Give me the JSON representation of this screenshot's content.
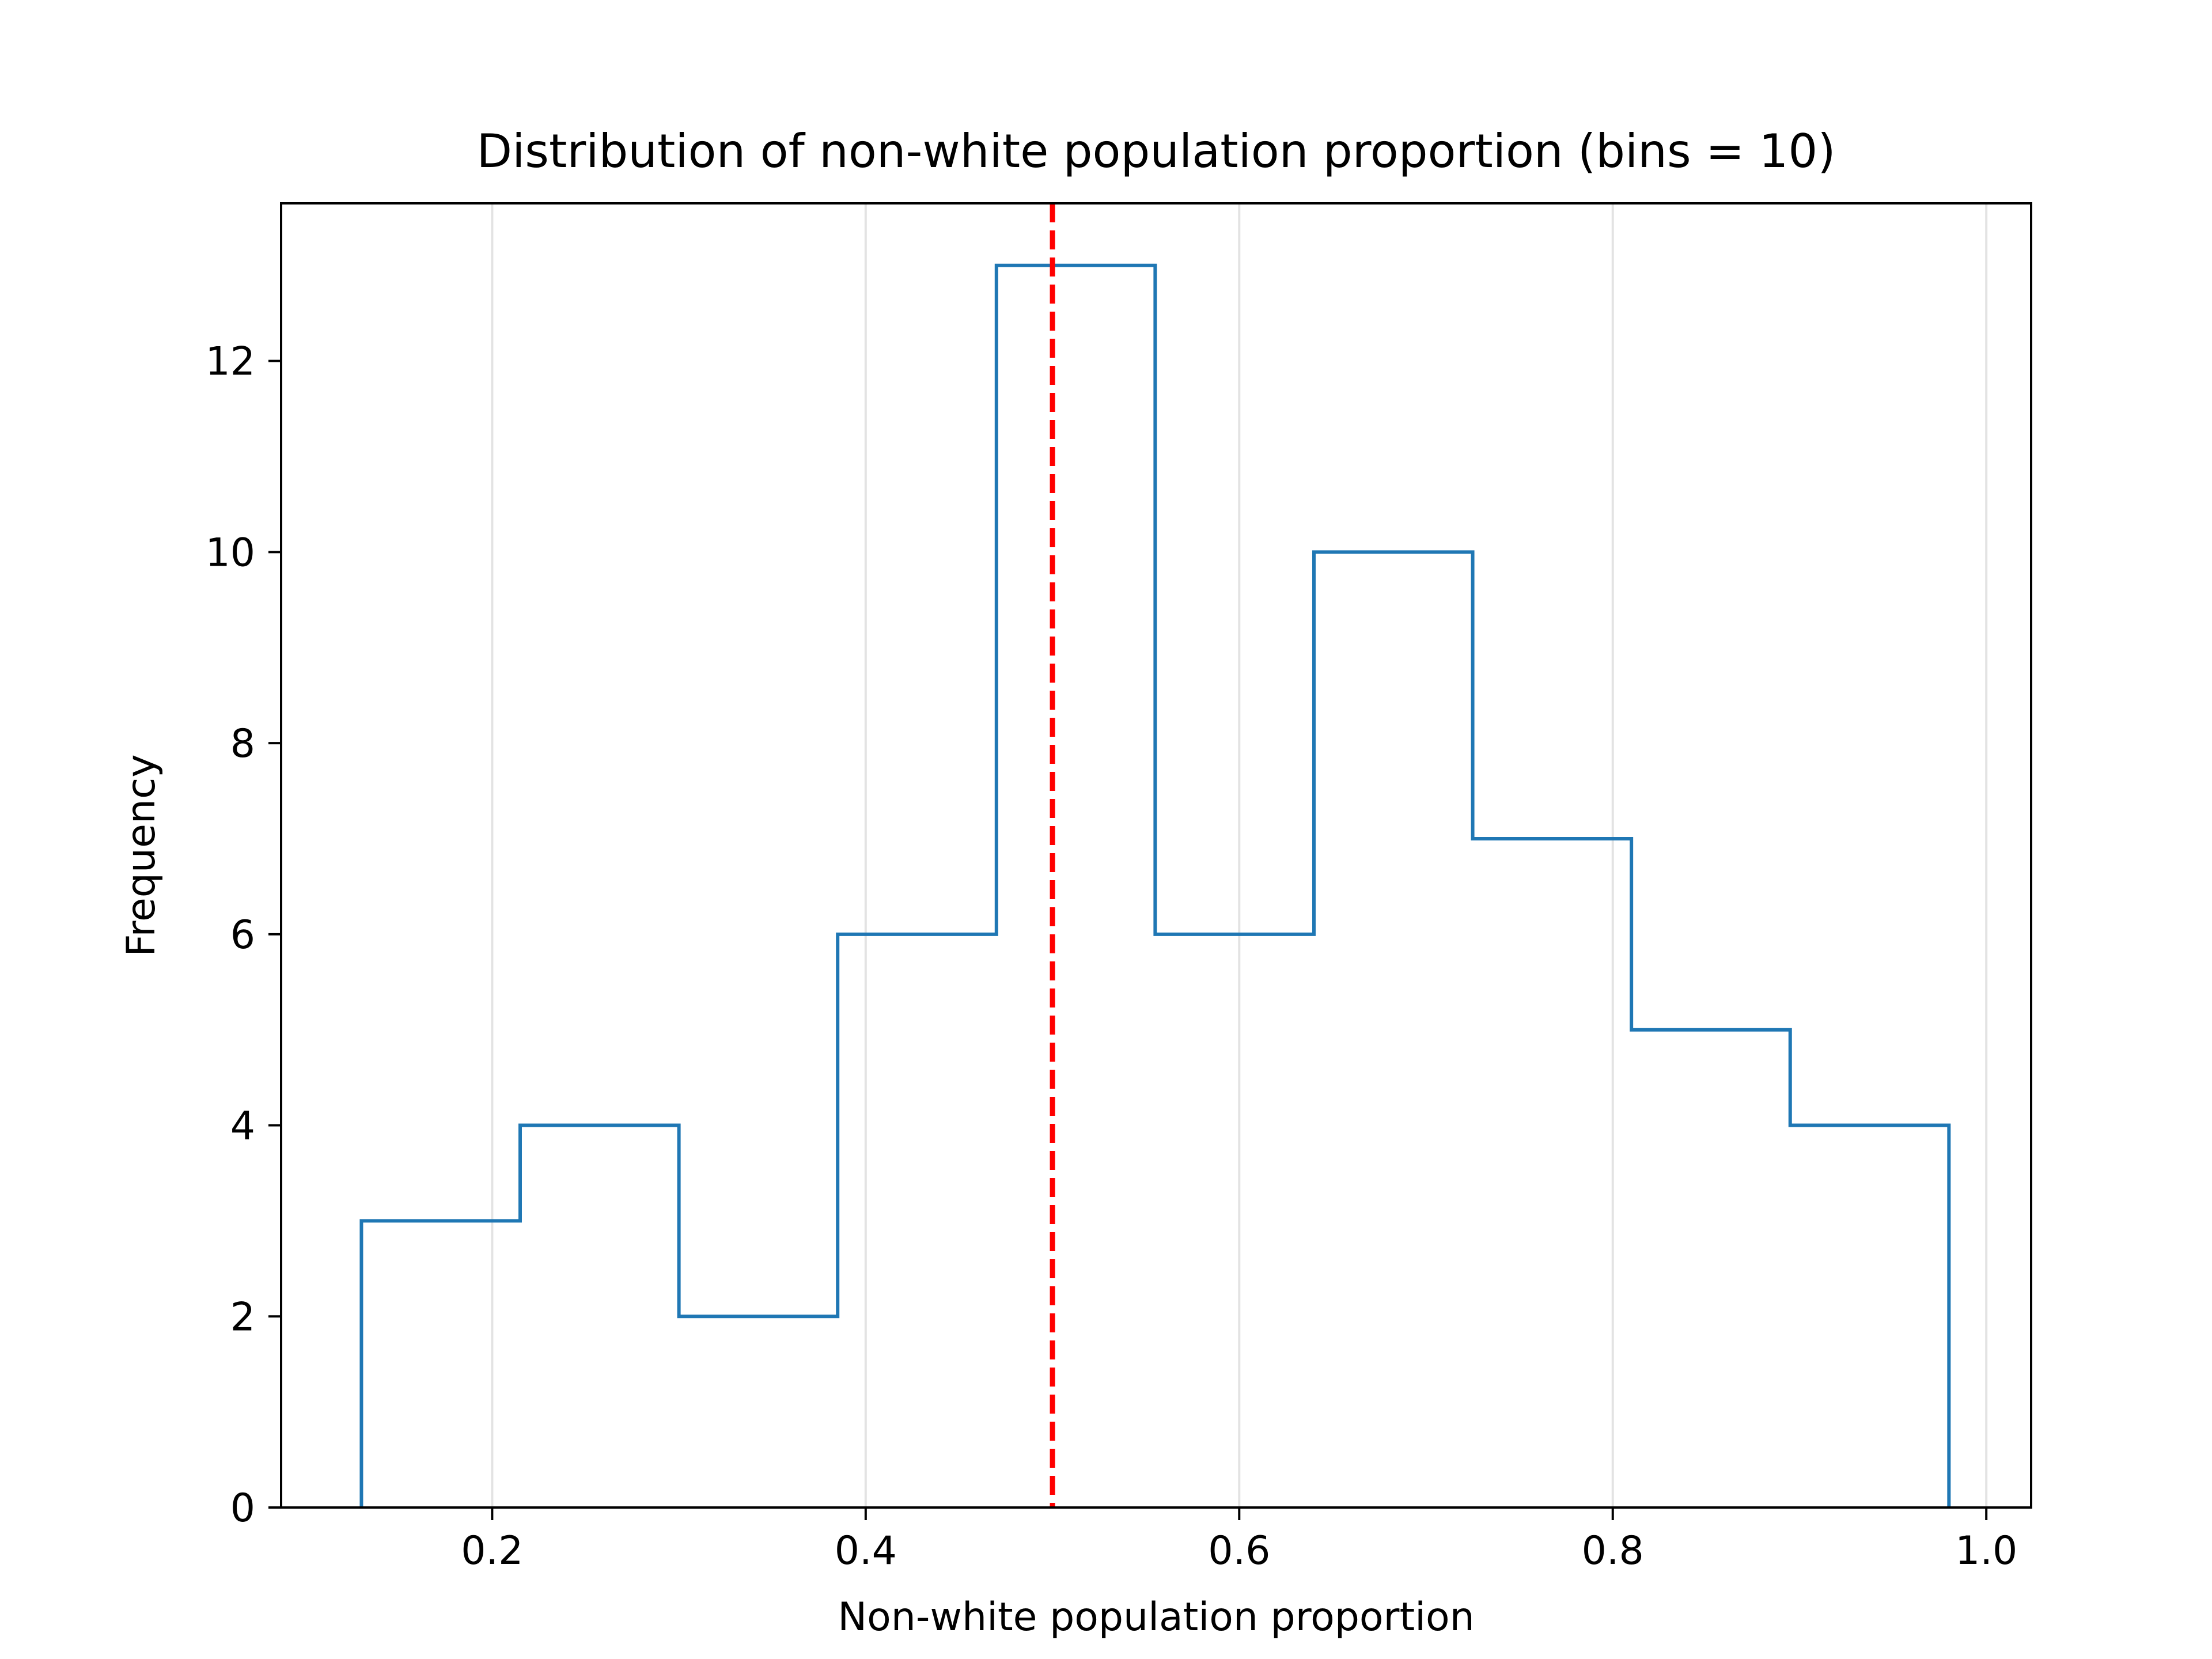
{
  "chart_data": {
    "type": "histogram",
    "title": "Distribution of non-white population proportion (bins = 10)",
    "xlabel": "Non-white population proportion",
    "ylabel": "Frequency",
    "xlim": [
      0.087,
      1.024
    ],
    "ylim": [
      0,
      13.65
    ],
    "xticks": [
      0.2,
      0.4,
      0.6,
      0.8,
      1.0
    ],
    "xtick_labels": [
      "0.2",
      "0.4",
      "0.6",
      "0.8",
      "1.0"
    ],
    "yticks": [
      0,
      2,
      4,
      6,
      8,
      10,
      12
    ],
    "ytick_labels": [
      "0",
      "2",
      "4",
      "6",
      "8",
      "10",
      "12"
    ],
    "bin_edges": [
      0.13,
      0.215,
      0.3,
      0.385,
      0.47,
      0.555,
      0.64,
      0.725,
      0.81,
      0.895,
      0.98
    ],
    "counts": [
      3,
      4,
      2,
      6,
      13,
      6,
      10,
      7,
      5,
      4
    ],
    "reference_line": {
      "x": 0.5,
      "style": "dashed",
      "color": "#ff0000"
    },
    "histtype": "step",
    "series_color": "#1f77b4",
    "grid": "vertical-only",
    "legend": "none"
  }
}
